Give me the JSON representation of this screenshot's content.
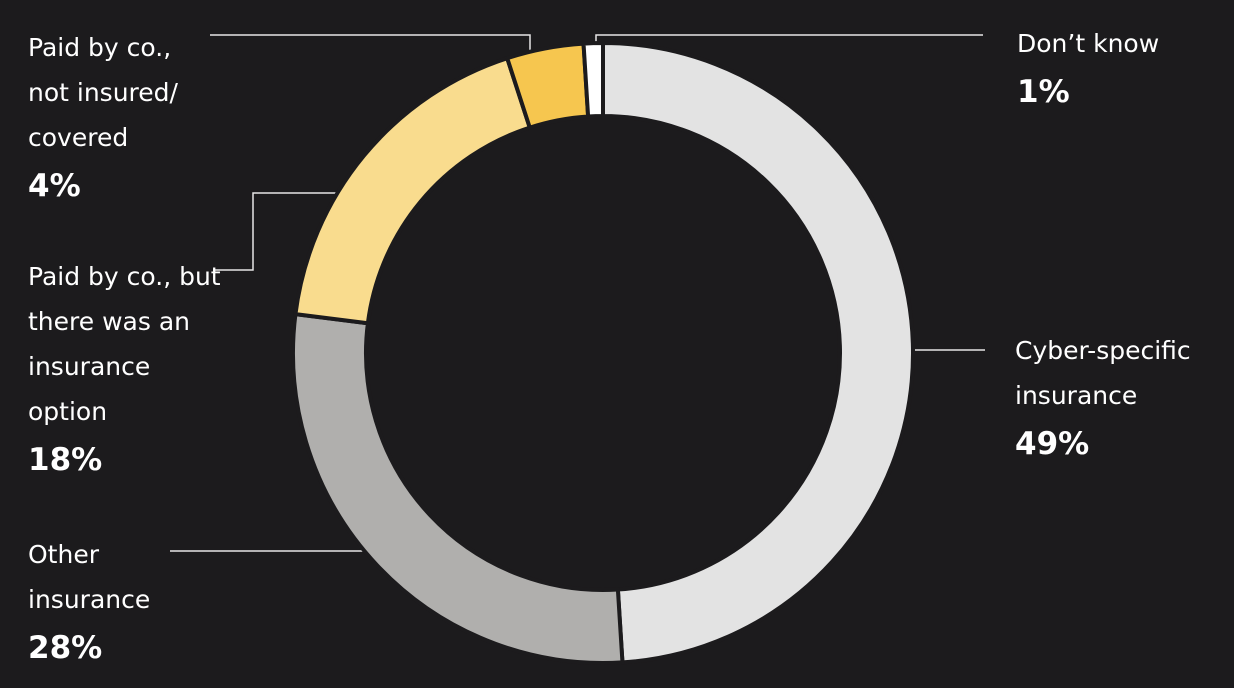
{
  "chart_data": {
    "type": "donut",
    "categories": [
      "Cyber-specific insurance",
      "Other insurance",
      "Paid by co., but there was an insurance option",
      "Paid by co., not insured/ covered",
      "Don’t know"
    ],
    "values": [
      49,
      28,
      18,
      4,
      1
    ],
    "value_labels": [
      "49%",
      "28%",
      "18%",
      "4%",
      "1%"
    ],
    "colors": [
      "#e3e3e3",
      "#b0afad",
      "#f9dc8e",
      "#f6c64f",
      "#ffffff"
    ]
  }
}
